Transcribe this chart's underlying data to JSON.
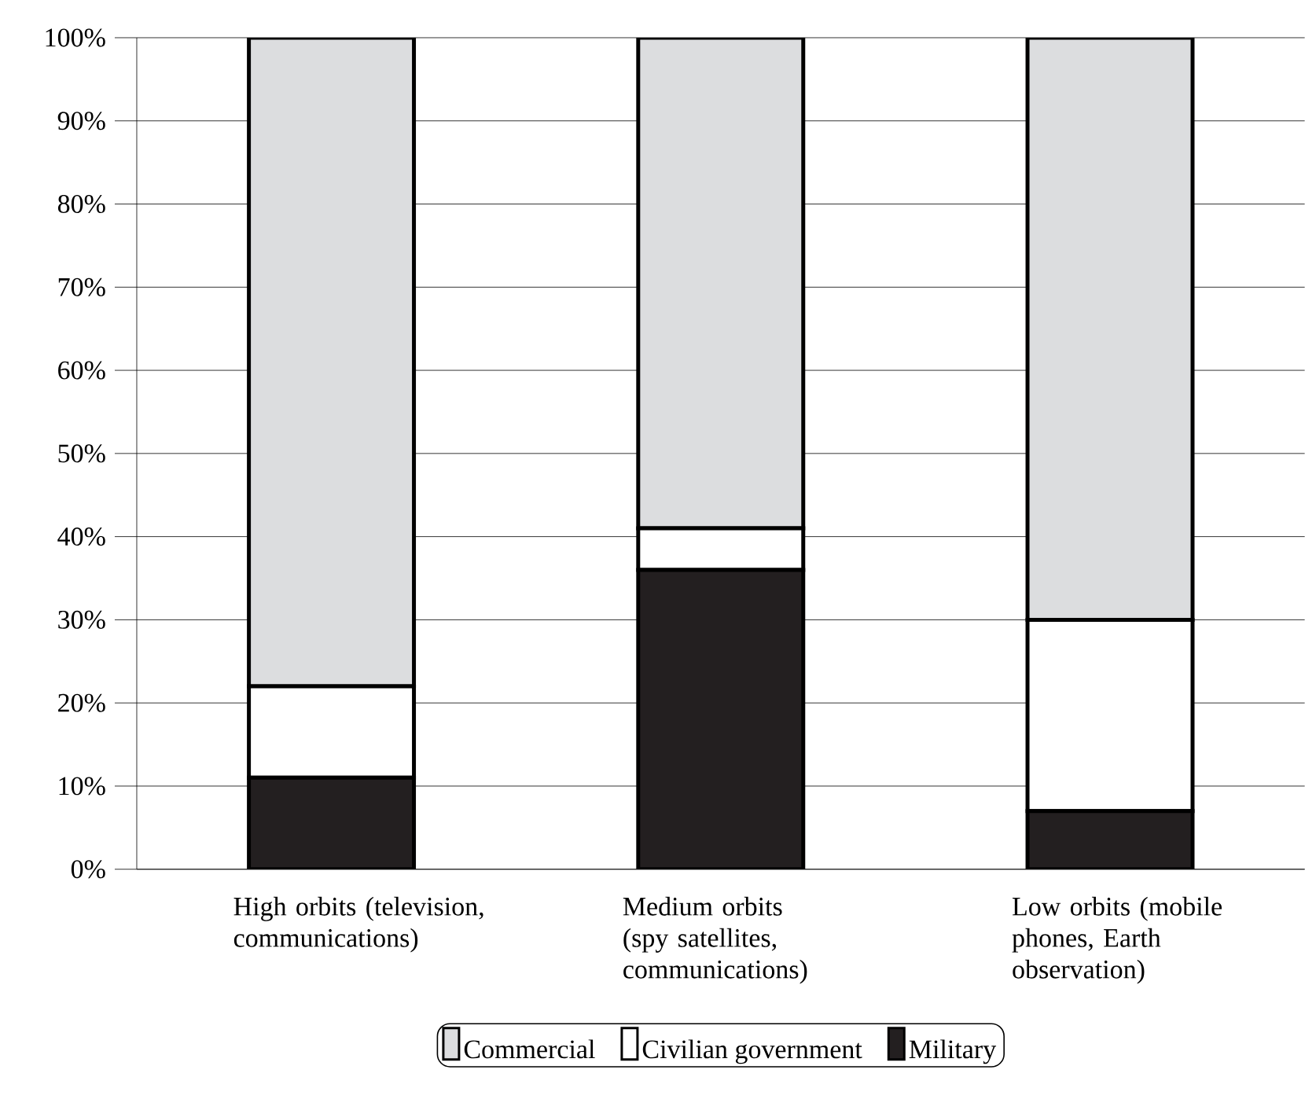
{
  "chart_data": {
    "type": "bar",
    "stacked": true,
    "categories": [
      "High orbits (television, communications)",
      "Medium orbits (spy satellites, communications)",
      "Low orbits (mobile phones, Earth observation)"
    ],
    "series": [
      {
        "name": "Military",
        "color": "#231f20",
        "values": [
          11,
          36,
          7
        ]
      },
      {
        "name": "Civilian government",
        "color": "#ffffff",
        "values": [
          11,
          5,
          23
        ]
      },
      {
        "name": "Commercial",
        "color": "#dcdddf",
        "values": [
          78,
          59,
          70
        ]
      }
    ],
    "ylim": [
      0,
      100
    ],
    "yticks": [
      {
        "value": 0,
        "label": "0%"
      },
      {
        "value": 10,
        "label": "10%"
      },
      {
        "value": 20,
        "label": "20%"
      },
      {
        "value": 30,
        "label": "30%"
      },
      {
        "value": 40,
        "label": "40%"
      },
      {
        "value": 50,
        "label": "50%"
      },
      {
        "value": 60,
        "label": "60%"
      },
      {
        "value": 70,
        "label": "70%"
      },
      {
        "value": 80,
        "label": "80%"
      },
      {
        "value": 90,
        "label": "90%"
      },
      {
        "value": 100,
        "label": "100%"
      }
    ],
    "grid": "y",
    "legend": "bottom"
  }
}
